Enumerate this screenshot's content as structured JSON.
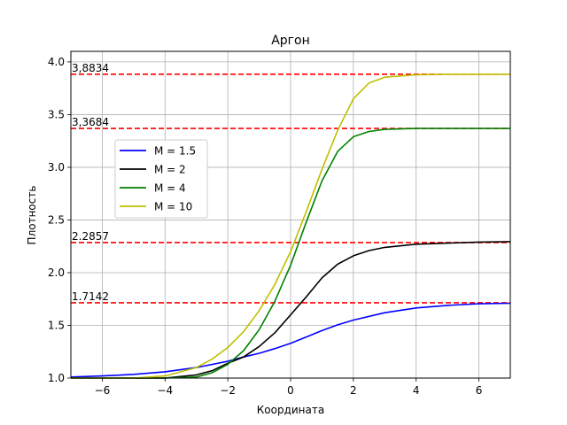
{
  "chart_data": {
    "type": "line",
    "title": "Аргон",
    "xlabel": "Координата",
    "ylabel": "Плотность",
    "xlim": [
      -7,
      7
    ],
    "ylim": [
      1.0,
      4.1
    ],
    "xticks": [
      -6,
      -4,
      -2,
      0,
      2,
      4,
      6
    ],
    "xtick_labels": [
      "−6",
      "−4",
      "−2",
      "0",
      "2",
      "4",
      "6"
    ],
    "yticks": [
      1.0,
      1.5,
      2.0,
      2.5,
      3.0,
      3.5,
      4.0
    ],
    "ytick_labels": [
      "1.0",
      "1.5",
      "2.0",
      "2.5",
      "3.0",
      "3.5",
      "4.0"
    ],
    "grid": true,
    "legend_position": "center-left",
    "series": [
      {
        "name": "M = 1.5",
        "color": "#0000ff",
        "x": [
          -7,
          -6,
          -5,
          -4,
          -3,
          -2,
          -1.5,
          -1,
          -0.5,
          0,
          0.5,
          1,
          1.5,
          2,
          3,
          4,
          5,
          6,
          7
        ],
        "values": [
          1.01,
          1.02,
          1.035,
          1.06,
          1.1,
          1.16,
          1.2,
          1.235,
          1.28,
          1.33,
          1.39,
          1.45,
          1.505,
          1.55,
          1.62,
          1.665,
          1.69,
          1.705,
          1.71
        ]
      },
      {
        "name": "M = 2",
        "color": "#000000",
        "x": [
          -7,
          -5,
          -4,
          -3,
          -2.5,
          -2,
          -1.5,
          -1,
          -0.5,
          0,
          0.5,
          1,
          1.5,
          2,
          2.5,
          3,
          4,
          5,
          6,
          7
        ],
        "values": [
          1.0,
          1.0,
          1.0,
          1.03,
          1.07,
          1.14,
          1.2,
          1.3,
          1.43,
          1.6,
          1.77,
          1.95,
          2.08,
          2.16,
          2.21,
          2.24,
          2.27,
          2.28,
          2.29,
          2.295
        ]
      },
      {
        "name": "M = 4",
        "color": "#008000",
        "x": [
          -7,
          -4,
          -3,
          -2.5,
          -2,
          -1.5,
          -1,
          -0.5,
          0,
          0.5,
          1,
          1.5,
          2,
          2.5,
          3,
          4,
          5,
          6,
          7
        ],
        "values": [
          1.0,
          1.0,
          1.01,
          1.05,
          1.13,
          1.26,
          1.46,
          1.73,
          2.07,
          2.48,
          2.87,
          3.15,
          3.29,
          3.34,
          3.36,
          3.368,
          3.368,
          3.368,
          3.368
        ]
      },
      {
        "name": "M = 10",
        "color": "#bfbf00",
        "x": [
          -7,
          -5,
          -4,
          -3,
          -2.5,
          -2,
          -1.5,
          -1,
          -0.5,
          0,
          0.5,
          1,
          1.5,
          2,
          2.5,
          3,
          4,
          5,
          6,
          7
        ],
        "values": [
          1.0,
          1.0,
          1.02,
          1.1,
          1.18,
          1.29,
          1.44,
          1.64,
          1.89,
          2.2,
          2.58,
          2.98,
          3.35,
          3.65,
          3.8,
          3.855,
          3.878,
          3.883,
          3.883,
          3.883
        ]
      }
    ],
    "reference_lines": [
      {
        "value": 3.8834,
        "label": "3,8834",
        "color": "#ff0000"
      },
      {
        "value": 3.3684,
        "label": "3,3684",
        "color": "#ff0000"
      },
      {
        "value": 2.2857,
        "label": "2.2857",
        "color": "#ff0000"
      },
      {
        "value": 1.7142,
        "label": "1.7142",
        "color": "#ff0000"
      }
    ]
  }
}
